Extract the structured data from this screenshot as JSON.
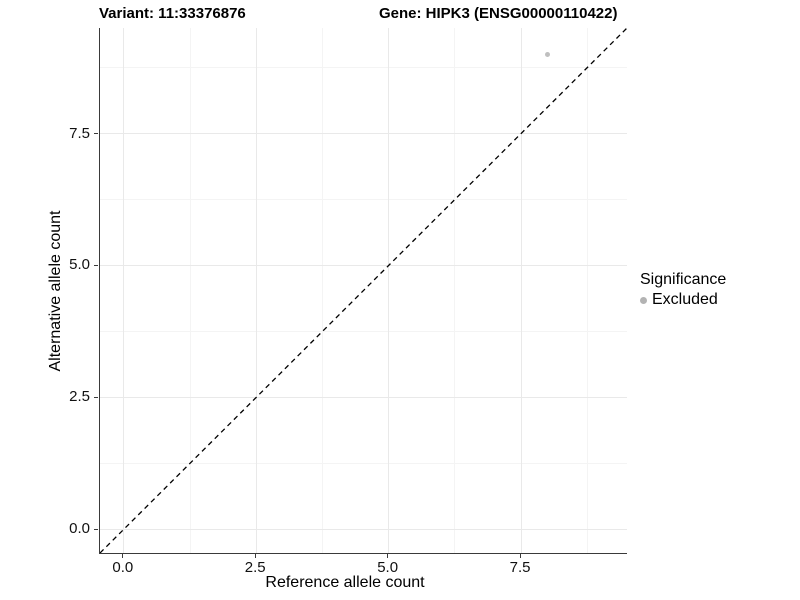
{
  "titles": {
    "variant": "Variant: 11:33376876",
    "gene": "Gene: HIPK3 (ENSG00000110422)"
  },
  "chart_data": {
    "type": "scatter",
    "title_left": "Variant: 11:33376876",
    "title_right": "Gene: HIPK3 (ENSG00000110422)",
    "xlabel": "Reference allele count",
    "ylabel": "Alternative allele count",
    "xlim": [
      -0.45,
      9.5
    ],
    "ylim": [
      -0.45,
      9.5
    ],
    "x_major_ticks": [
      0,
      2.5,
      5,
      7.5
    ],
    "x_tick_labels": [
      "0.0",
      "2.5",
      "5.0",
      "7.5"
    ],
    "x_minor_ticks": [
      1.25,
      3.75,
      6.25,
      8.75
    ],
    "y_major_ticks": [
      0,
      2.5,
      5,
      7.5
    ],
    "y_tick_labels": [
      "0.0",
      "2.5",
      "5.0",
      "7.5"
    ],
    "y_minor_ticks": [
      1.25,
      3.75,
      6.25,
      8.75
    ],
    "grid": true,
    "series": [
      {
        "name": "Excluded",
        "color": "#bfbfbf",
        "marker": "circle",
        "marker_size_px": 5,
        "points": [
          {
            "x": 8,
            "y": 9
          }
        ]
      }
    ],
    "reference_line": {
      "slope": 1,
      "intercept": 0,
      "style": "dashed",
      "color": "#000000"
    },
    "legend": {
      "title": "Significance",
      "position": "right",
      "entries": [
        {
          "label": "Excluded",
          "color": "#b3b3b3",
          "marker": "circle"
        }
      ]
    },
    "colors": {
      "axis_line": "#3a3a3a",
      "grid_major": "#e9e9e9",
      "grid_minor": "#f4f4f4",
      "tick_text": "#111111"
    }
  }
}
